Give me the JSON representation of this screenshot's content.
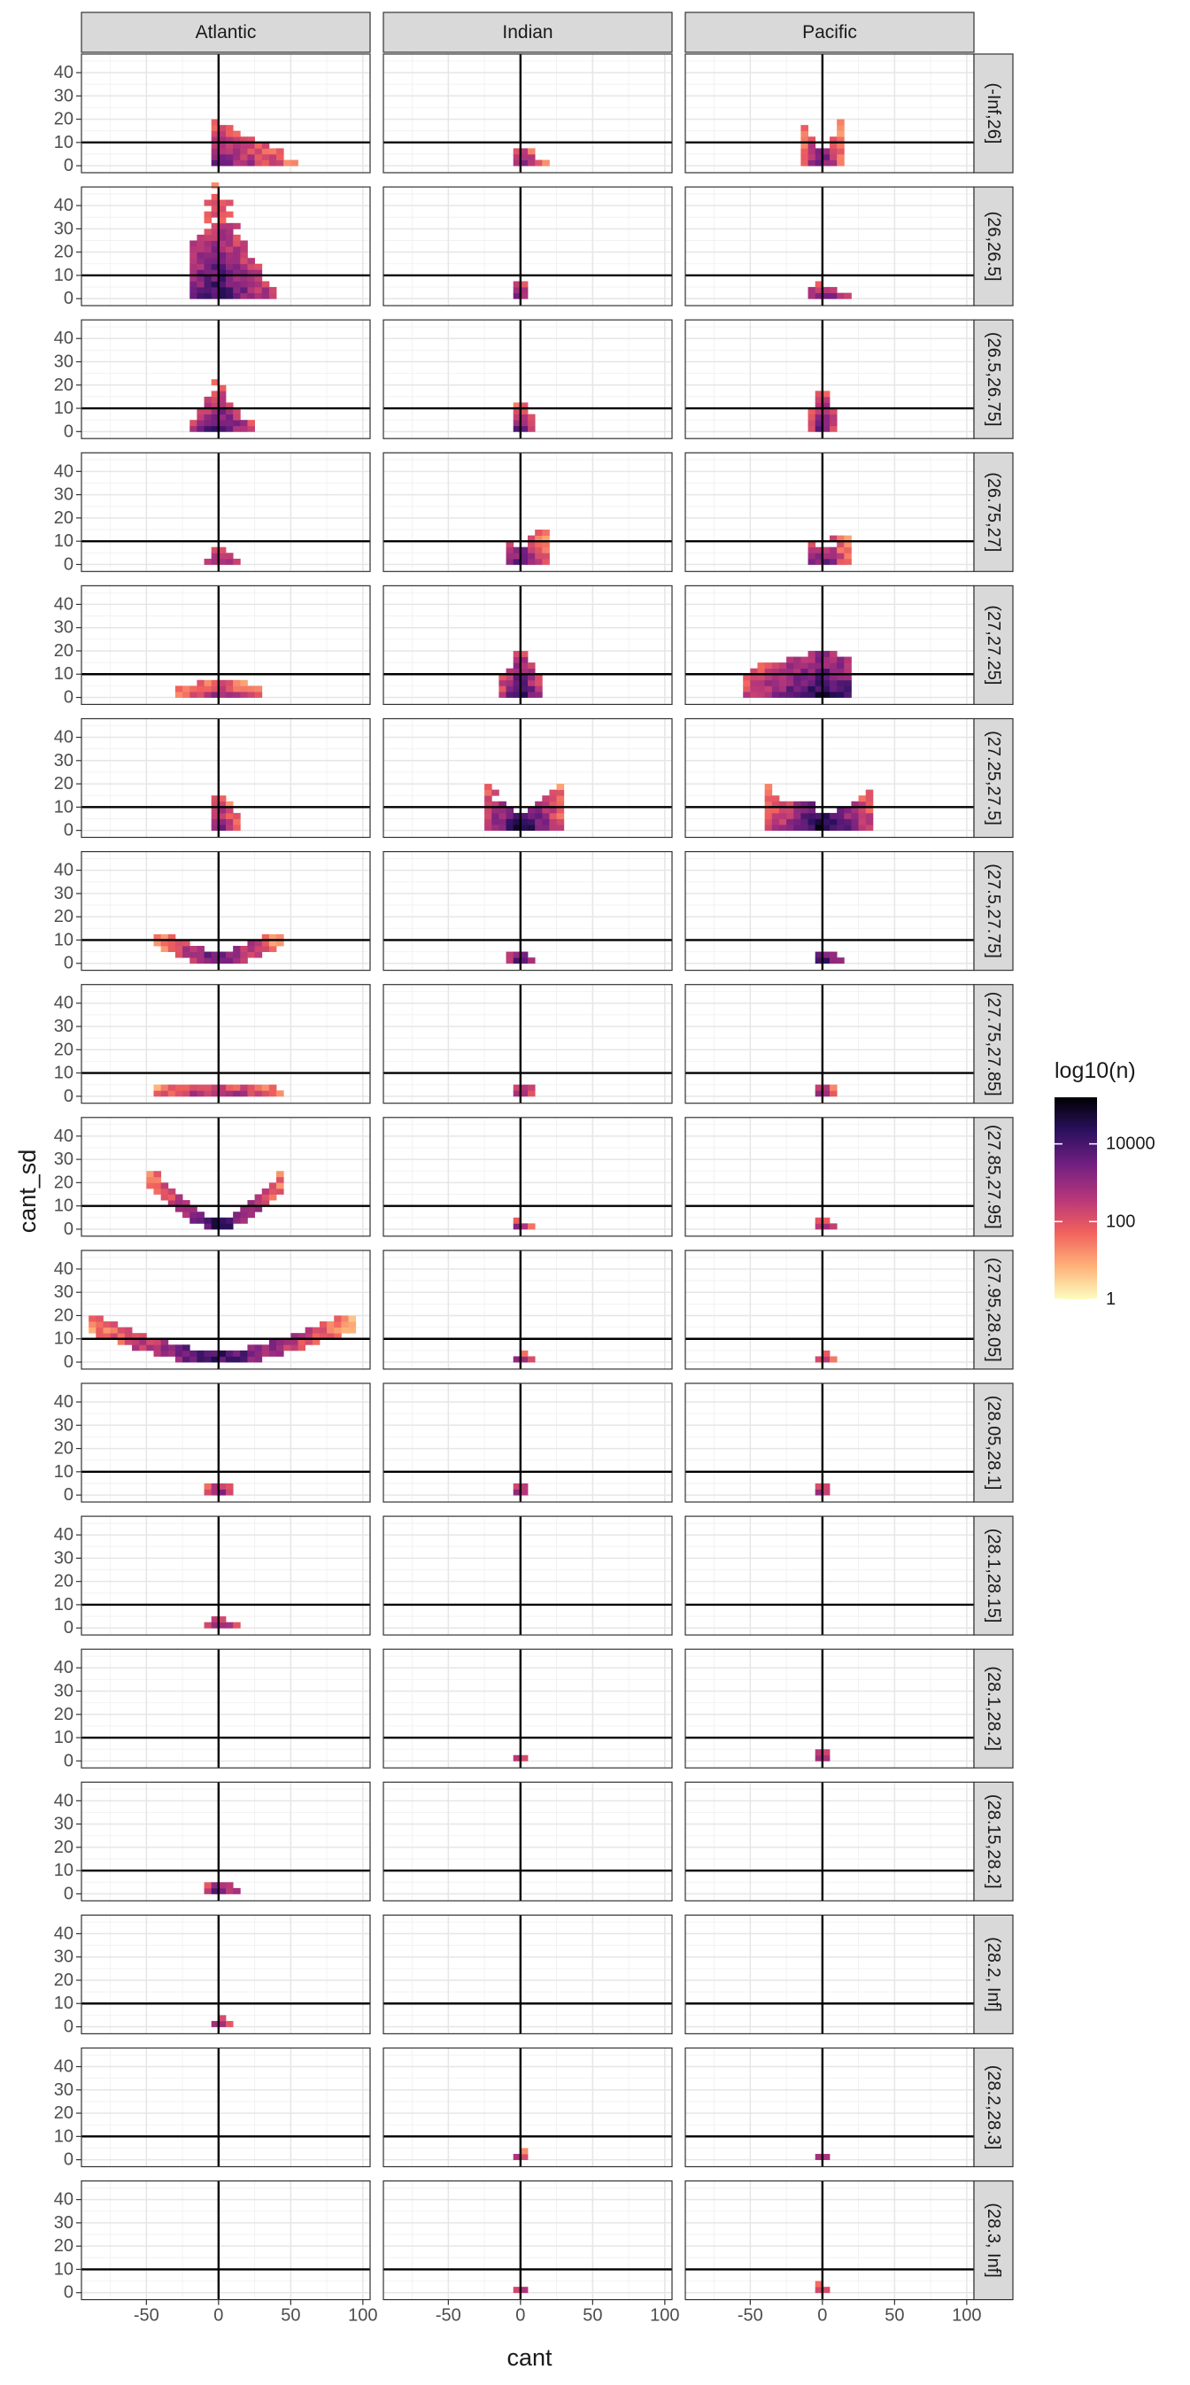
{
  "chart_data": {
    "type": "heatmap",
    "xlabel": "cant",
    "ylabel": "cant_sd",
    "xlim": [
      -95,
      105
    ],
    "ylim": [
      -3,
      48
    ],
    "x_ticks": [
      -50,
      0,
      50,
      100
    ],
    "x_tick_labels": [
      "-50",
      "0",
      "50",
      "100"
    ],
    "y_ticks": [
      0,
      10,
      20,
      30,
      40
    ],
    "y_tick_labels": [
      "0",
      "10",
      "20",
      "30",
      "40"
    ],
    "vline_x": 0,
    "hline_y": 10,
    "grid": true,
    "bin_width": 5,
    "bin_height": 2.5,
    "columns": [
      "Atlantic",
      "Indian",
      "Pacific"
    ],
    "rows": [
      "(-Inf,26]",
      "(26,26.5]",
      "(26.5,26.75]",
      "(26.75,27]",
      "(27,27.25]",
      "(27.25,27.5]",
      "(27.5,27.75]",
      "(27.75,27.85]",
      "(27.85,27.95]",
      "(27.95,28.05]",
      "(28.05,28.1]",
      "(28.1,28.15]",
      "(28.1,28.2]",
      "(28.15,28.2]",
      "(28.2, Inf]",
      "(28.2,28.3]",
      "(28.3, Inf]"
    ],
    "legend": {
      "title": "log10(n)",
      "position": "right",
      "labels": [
        "10000",
        "100",
        "1"
      ],
      "label_values": [
        4,
        2,
        0
      ],
      "range": [
        0,
        5.2
      ],
      "colors": [
        "#fcfdbf",
        "#feb078",
        "#f1605d",
        "#b5367a",
        "#721f81",
        "#2c115f",
        "#000004"
      ]
    },
    "clusters": [
      {
        "row": 0,
        "col": 0,
        "x": [
          -5,
          55
        ],
        "y": [
          0,
          20
        ],
        "shape": "wedge",
        "peak": 0.7
      },
      {
        "row": 0,
        "col": 1,
        "x": [
          -5,
          20
        ],
        "y": [
          0,
          8
        ],
        "shape": "wedge",
        "peak": 0.7
      },
      {
        "row": 0,
        "col": 2,
        "x": [
          -15,
          15
        ],
        "y": [
          0,
          20
        ],
        "shape": "cup",
        "peak": 0.75
      },
      {
        "row": 1,
        "col": 0,
        "x": [
          -20,
          40
        ],
        "y": [
          0,
          48
        ],
        "shape": "blob",
        "peak": 0.85
      },
      {
        "row": 1,
        "col": 1,
        "x": [
          -5,
          5
        ],
        "y": [
          0,
          10
        ],
        "shape": "column",
        "peak": 0.85
      },
      {
        "row": 1,
        "col": 2,
        "x": [
          -10,
          20
        ],
        "y": [
          0,
          8
        ],
        "shape": "blob",
        "peak": 0.8
      },
      {
        "row": 2,
        "col": 0,
        "x": [
          -20,
          25
        ],
        "y": [
          0,
          22
        ],
        "shape": "blob",
        "peak": 0.85
      },
      {
        "row": 2,
        "col": 1,
        "x": [
          -5,
          10
        ],
        "y": [
          0,
          12
        ],
        "shape": "column",
        "peak": 0.85
      },
      {
        "row": 2,
        "col": 2,
        "x": [
          -10,
          10
        ],
        "y": [
          0,
          20
        ],
        "shape": "column",
        "peak": 0.85
      },
      {
        "row": 3,
        "col": 0,
        "x": [
          -10,
          15
        ],
        "y": [
          0,
          8
        ],
        "shape": "blob",
        "peak": 0.75
      },
      {
        "row": 3,
        "col": 1,
        "x": [
          -10,
          20
        ],
        "y": [
          0,
          17
        ],
        "shape": "cup",
        "peak": 0.75
      },
      {
        "row": 3,
        "col": 2,
        "x": [
          -10,
          20
        ],
        "y": [
          0,
          12
        ],
        "shape": "cup",
        "peak": 0.75
      },
      {
        "row": 4,
        "col": 0,
        "x": [
          -30,
          30
        ],
        "y": [
          0,
          7
        ],
        "shape": "flat",
        "peak": 0.6
      },
      {
        "row": 4,
        "col": 1,
        "x": [
          -15,
          15
        ],
        "y": [
          0,
          20
        ],
        "shape": "column",
        "peak": 0.95
      },
      {
        "row": 4,
        "col": 2,
        "x": [
          -55,
          20
        ],
        "y": [
          0,
          20
        ],
        "shape": "flat",
        "peak": 0.9
      },
      {
        "row": 5,
        "col": 0,
        "x": [
          -5,
          15
        ],
        "y": [
          0,
          15
        ],
        "shape": "column",
        "peak": 0.75
      },
      {
        "row": 5,
        "col": 1,
        "x": [
          -25,
          30
        ],
        "y": [
          0,
          22
        ],
        "shape": "cup",
        "peak": 0.95
      },
      {
        "row": 5,
        "col": 2,
        "x": [
          -40,
          35
        ],
        "y": [
          0,
          18
        ],
        "shape": "cup",
        "peak": 0.95
      },
      {
        "row": 6,
        "col": 0,
        "x": [
          -45,
          45
        ],
        "y": [
          0,
          12
        ],
        "shape": "vee",
        "peak": 0.75
      },
      {
        "row": 6,
        "col": 1,
        "x": [
          -10,
          10
        ],
        "y": [
          0,
          5
        ],
        "shape": "flat",
        "peak": 0.95
      },
      {
        "row": 6,
        "col": 2,
        "x": [
          -5,
          15
        ],
        "y": [
          0,
          5
        ],
        "shape": "flat",
        "peak": 0.95
      },
      {
        "row": 7,
        "col": 0,
        "x": [
          -45,
          45
        ],
        "y": [
          0,
          5
        ],
        "shape": "flat",
        "peak": 0.65
      },
      {
        "row": 7,
        "col": 1,
        "x": [
          -5,
          10
        ],
        "y": [
          0,
          5
        ],
        "shape": "flat",
        "peak": 0.8
      },
      {
        "row": 7,
        "col": 2,
        "x": [
          -5,
          10
        ],
        "y": [
          0,
          5
        ],
        "shape": "flat",
        "peak": 0.8
      },
      {
        "row": 8,
        "col": 0,
        "x": [
          -50,
          45
        ],
        "y": [
          0,
          25
        ],
        "shape": "vee",
        "peak": 0.85
      },
      {
        "row": 8,
        "col": 1,
        "x": [
          -5,
          10
        ],
        "y": [
          0,
          3
        ],
        "shape": "flat",
        "peak": 0.75
      },
      {
        "row": 8,
        "col": 2,
        "x": [
          -5,
          10
        ],
        "y": [
          0,
          3
        ],
        "shape": "flat",
        "peak": 0.75
      },
      {
        "row": 9,
        "col": 0,
        "x": [
          -90,
          95
        ],
        "y": [
          0,
          19
        ],
        "shape": "vee",
        "peak": 0.8
      },
      {
        "row": 9,
        "col": 1,
        "x": [
          -5,
          10
        ],
        "y": [
          0,
          3
        ],
        "shape": "flat",
        "peak": 0.75
      },
      {
        "row": 9,
        "col": 2,
        "x": [
          -5,
          10
        ],
        "y": [
          0,
          3
        ],
        "shape": "flat",
        "peak": 0.7
      },
      {
        "row": 10,
        "col": 0,
        "x": [
          -10,
          10
        ],
        "y": [
          0,
          5
        ],
        "shape": "flat",
        "peak": 0.8
      },
      {
        "row": 10,
        "col": 1,
        "x": [
          -5,
          5
        ],
        "y": [
          0,
          5
        ],
        "shape": "flat",
        "peak": 0.85
      },
      {
        "row": 10,
        "col": 2,
        "x": [
          -5,
          5
        ],
        "y": [
          0,
          5
        ],
        "shape": "flat",
        "peak": 0.75
      },
      {
        "row": 11,
        "col": 0,
        "x": [
          -10,
          15
        ],
        "y": [
          0,
          7
        ],
        "shape": "blob",
        "peak": 0.75
      },
      {
        "row": 12,
        "col": 1,
        "x": [
          -5,
          5
        ],
        "y": [
          0,
          3
        ],
        "shape": "flat",
        "peak": 0.8
      },
      {
        "row": 12,
        "col": 2,
        "x": [
          -5,
          5
        ],
        "y": [
          0,
          5
        ],
        "shape": "flat",
        "peak": 0.75
      },
      {
        "row": 13,
        "col": 0,
        "x": [
          -10,
          15
        ],
        "y": [
          0,
          5
        ],
        "shape": "flat",
        "peak": 0.85
      },
      {
        "row": 14,
        "col": 0,
        "x": [
          -5,
          10
        ],
        "y": [
          0,
          3
        ],
        "shape": "flat",
        "peak": 0.8
      },
      {
        "row": 15,
        "col": 1,
        "x": [
          -5,
          5
        ],
        "y": [
          0,
          3
        ],
        "shape": "flat",
        "peak": 0.8
      },
      {
        "row": 15,
        "col": 2,
        "x": [
          -5,
          5
        ],
        "y": [
          0,
          5
        ],
        "shape": "blob",
        "peak": 0.75
      },
      {
        "row": 16,
        "col": 1,
        "x": [
          -5,
          5
        ],
        "y": [
          0,
          3
        ],
        "shape": "flat",
        "peak": 0.8
      },
      {
        "row": 16,
        "col": 2,
        "x": [
          -5,
          5
        ],
        "y": [
          0,
          3
        ],
        "shape": "flat",
        "peak": 0.7
      }
    ]
  }
}
